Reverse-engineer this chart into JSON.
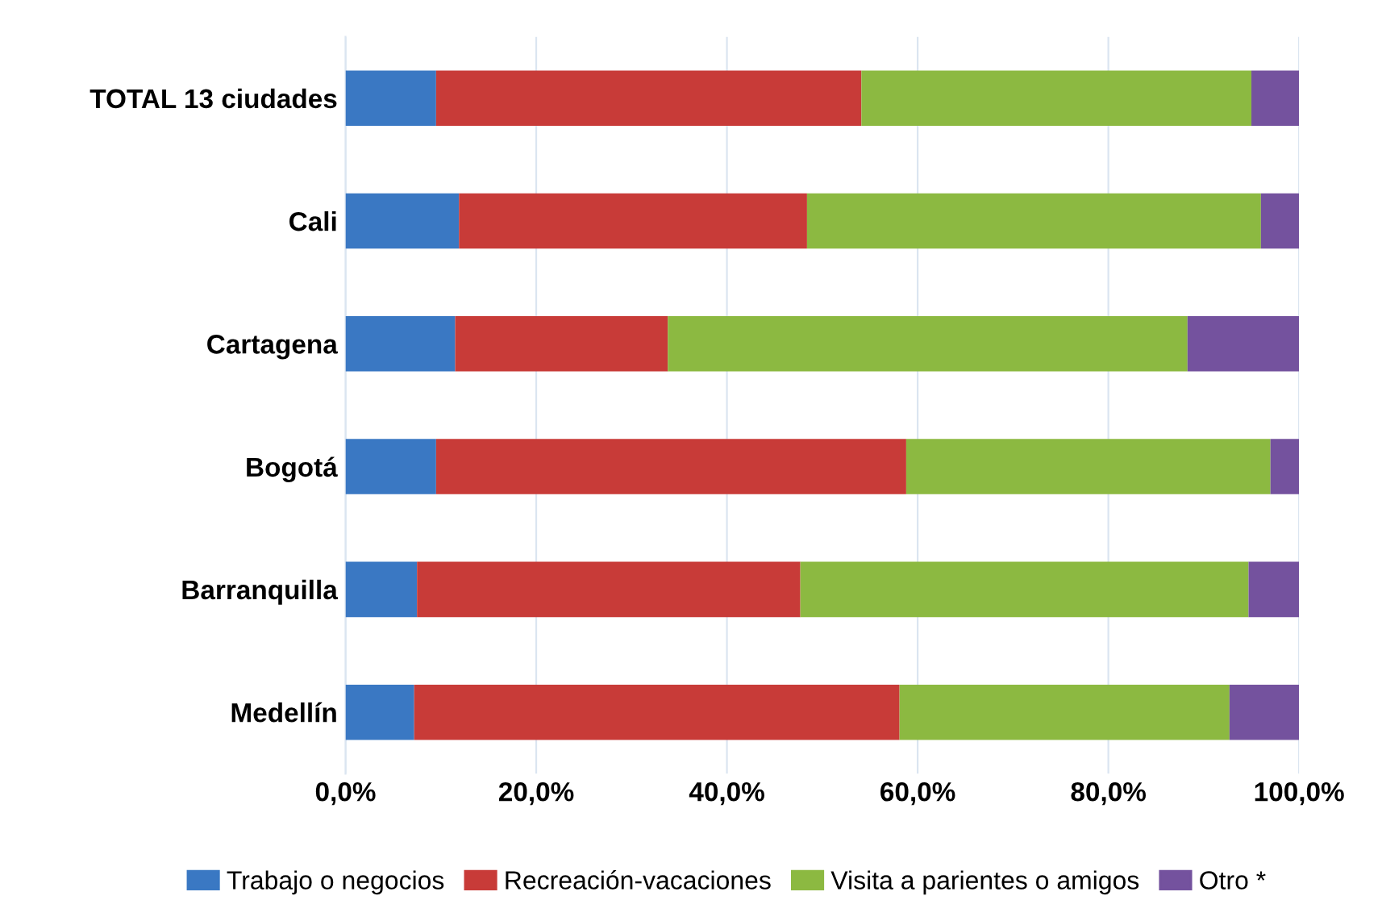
{
  "chart_data": {
    "type": "bar",
    "orientation": "horizontal",
    "stacked": true,
    "categories": [
      "TOTAL 13 ciudades",
      "Cali",
      "Cartagena",
      "Bogotá",
      "Barranquilla",
      "Medellín"
    ],
    "series": [
      {
        "name": "Trabajo o negocios",
        "color": "#3a78c3",
        "values": [
          9.5,
          11.9,
          11.5,
          9.5,
          7.5,
          7.2
        ]
      },
      {
        "name": "Recreación-vacaciones",
        "color": "#c83b38",
        "values": [
          44.6,
          36.5,
          22.3,
          49.3,
          40.2,
          50.9
        ]
      },
      {
        "name": "Visita a parientes o amigos",
        "color": "#8cb941",
        "values": [
          40.9,
          47.6,
          54.5,
          38.2,
          47.0,
          34.6
        ]
      },
      {
        "name": "Otro *",
        "color": "#74529e",
        "values": [
          5.0,
          4.0,
          11.7,
          3.0,
          5.3,
          7.3
        ]
      }
    ],
    "xlim": [
      0,
      100
    ],
    "xticks": [
      {
        "value": 0,
        "label": "0,0%"
      },
      {
        "value": 20,
        "label": "20,0%"
      },
      {
        "value": 40,
        "label": "40,0%"
      },
      {
        "value": 60,
        "label": "60,0%"
      },
      {
        "value": 80,
        "label": "80,0%"
      },
      {
        "value": 100,
        "label": "100,0%"
      }
    ],
    "grid": "x",
    "legend": "bottom"
  }
}
